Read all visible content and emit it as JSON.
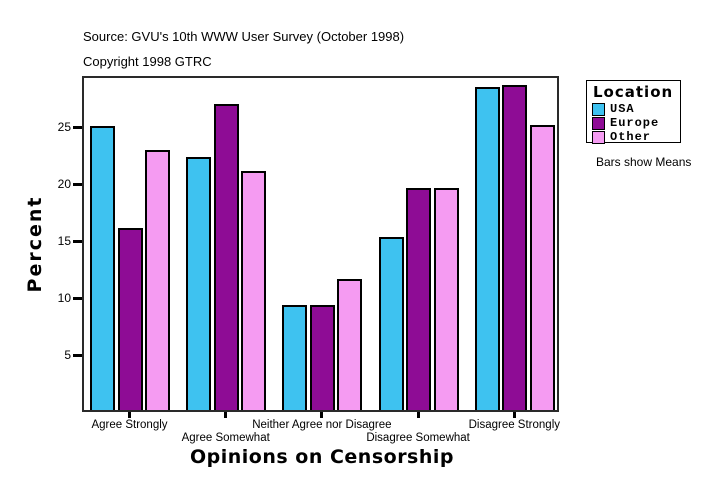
{
  "header": {
    "source_line": "Source: GVU's 10th WWW User Survey (October 1998)",
    "copyright_line": "Copyright 1998 GTRC"
  },
  "chart_data": {
    "type": "bar",
    "title": "Opinions on Censorship",
    "xlabel": "Opinions on Censorship",
    "ylabel": "Percent",
    "categories": [
      "Agree Strongly",
      "Agree Somewhat",
      "Neither Agree nor Disagree",
      "Disagree Somewhat",
      "Disagree Strongly"
    ],
    "series": [
      {
        "name": "USA",
        "color": "#3EC2F0",
        "values": [
          24.9,
          22.2,
          9.2,
          15.2,
          28.4
        ]
      },
      {
        "name": "Europe",
        "color": "#8E0C95",
        "values": [
          16.0,
          26.9,
          9.2,
          19.5,
          28.5
        ]
      },
      {
        "name": "Other",
        "color": "#F59BF2",
        "values": [
          22.8,
          21.0,
          11.5,
          19.5,
          25.0
        ]
      }
    ],
    "ylim": [
      0,
      29.5
    ],
    "yticks": [
      5,
      10,
      15,
      20,
      25
    ],
    "grid": false,
    "legend_position": "right",
    "bar_outline_color": "#000000"
  },
  "legend": {
    "title": "Location",
    "note": "Bars show Means"
  }
}
